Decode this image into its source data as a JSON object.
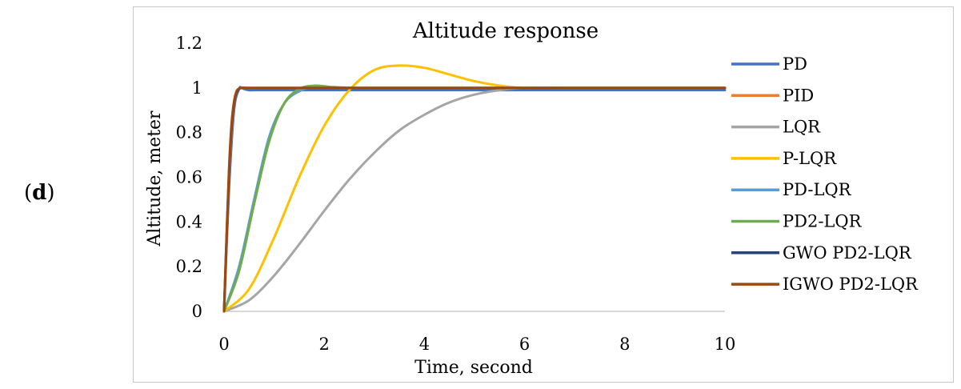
{
  "panel_label": {
    "open": "(",
    "letter": "d",
    "close": ")"
  },
  "chart_data": {
    "type": "line",
    "title": "Altitude response",
    "xlabel": "Time, second",
    "ylabel": "Altitude,  meter",
    "xlim": [
      0,
      10
    ],
    "ylim": [
      0,
      1.2
    ],
    "xticks": [
      0,
      2,
      4,
      6,
      8,
      10
    ],
    "yticks": [
      0,
      0.2,
      0.4,
      0.6,
      0.8,
      1,
      1.2
    ],
    "xtick_labels": [
      "0",
      "2",
      "4",
      "6",
      "8",
      "10"
    ],
    "ytick_labels": [
      "0",
      "0.2",
      "0.4",
      "0.6",
      "0.8",
      "1",
      "1.2"
    ],
    "grid": false,
    "legend_position": "right",
    "series": [
      {
        "name": "PD",
        "color": "#4472C4",
        "x": [
          0,
          0.1,
          0.2,
          0.3,
          0.35,
          0.4,
          0.5,
          0.6,
          1,
          10
        ],
        "y": [
          0,
          0.55,
          0.9,
          0.995,
          1.0,
          0.995,
          0.99,
          0.99,
          0.99,
          0.99
        ]
      },
      {
        "name": "PID",
        "color": "#ED7D31",
        "x": [
          0,
          0.05,
          0.1,
          0.15,
          0.2,
          0.25,
          0.3,
          0.35,
          0.5,
          10
        ],
        "y": [
          0,
          0.3,
          0.6,
          0.8,
          0.92,
          0.98,
          0.995,
          1.0,
          1.0,
          1.0
        ]
      },
      {
        "name": "LQR",
        "color": "#A5A5A5",
        "x": [
          0,
          0.5,
          1,
          1.5,
          2,
          2.5,
          3,
          3.5,
          4,
          4.5,
          5,
          5.5,
          6,
          7,
          8,
          10
        ],
        "y": [
          0,
          0.05,
          0.16,
          0.3,
          0.45,
          0.59,
          0.71,
          0.81,
          0.88,
          0.935,
          0.97,
          0.99,
          1.0,
          1.0,
          1.0,
          1.0
        ]
      },
      {
        "name": "P-LQR",
        "color": "#FFC000",
        "x": [
          0,
          0.5,
          1,
          1.5,
          2,
          2.5,
          3,
          3.5,
          4,
          4.5,
          5,
          5.5,
          6,
          7,
          8,
          10
        ],
        "y": [
          0,
          0.1,
          0.33,
          0.6,
          0.83,
          0.99,
          1.08,
          1.1,
          1.09,
          1.06,
          1.03,
          1.01,
          1.0,
          1.0,
          1.0,
          1.0
        ]
      },
      {
        "name": "PD-LQR",
        "color": "#5B9BD5",
        "x": [
          0,
          0.3,
          0.6,
          0.9,
          1.2,
          1.5,
          1.8,
          2.2,
          3,
          10
        ],
        "y": [
          0,
          0.2,
          0.5,
          0.78,
          0.93,
          0.985,
          1.005,
          1.0,
          1.0,
          1.0
        ]
      },
      {
        "name": "PD2-LQR",
        "color": "#70AD47",
        "x": [
          0,
          0.3,
          0.6,
          0.9,
          1.2,
          1.5,
          1.8,
          2.1,
          2.5,
          3,
          10
        ],
        "y": [
          0,
          0.18,
          0.48,
          0.76,
          0.93,
          0.995,
          1.01,
          1.005,
          1.0,
          1.0,
          1.0
        ]
      },
      {
        "name": "GWO PD2-LQR",
        "color": "#264478",
        "x": [
          0,
          0.05,
          0.1,
          0.15,
          0.2,
          0.25,
          0.3,
          0.35,
          0.5,
          10
        ],
        "y": [
          0,
          0.32,
          0.62,
          0.82,
          0.93,
          0.98,
          0.995,
          1.0,
          1.0,
          1.0
        ]
      },
      {
        "name": "IGWO PD2-LQR",
        "color": "#9E480E",
        "x": [
          0,
          0.05,
          0.1,
          0.15,
          0.2,
          0.25,
          0.3,
          0.35,
          0.5,
          10
        ],
        "y": [
          0,
          0.34,
          0.64,
          0.84,
          0.94,
          0.985,
          0.997,
          1.0,
          1.0,
          1.0
        ]
      }
    ]
  }
}
